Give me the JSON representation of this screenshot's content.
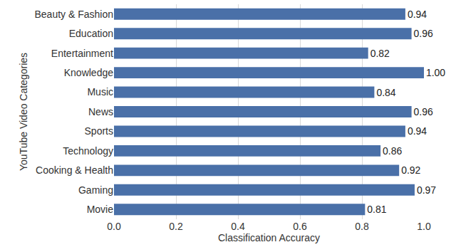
{
  "chart_data": {
    "type": "bar",
    "orientation": "horizontal",
    "xlabel": "Classification Accuracy",
    "ylabel": "YouTube Video Categories",
    "categories": [
      "Beauty & Fashion",
      "Education",
      "Entertainment",
      "Knowledge",
      "Music",
      "News",
      "Sports",
      "Technology",
      "Cooking & Health",
      "Gaming",
      "Movie"
    ],
    "values": [
      0.94,
      0.96,
      0.82,
      1.0,
      0.84,
      0.96,
      0.94,
      0.86,
      0.92,
      0.97,
      0.81
    ],
    "value_labels": [
      "0.94",
      "0.96",
      "0.82",
      "1.00",
      "0.84",
      "0.96",
      "0.94",
      "0.86",
      "0.92",
      "0.97",
      "0.81"
    ],
    "data_labels": true,
    "color": "#4a70a8",
    "xlim": [
      0,
      1.0
    ],
    "xticks": [
      {
        "value": 0,
        "label": "0.0"
      },
      0.2,
      0.4,
      0.6,
      0.8,
      {
        "value": 1.0,
        "label": "1.0"
      }
    ],
    "grid": true
  }
}
